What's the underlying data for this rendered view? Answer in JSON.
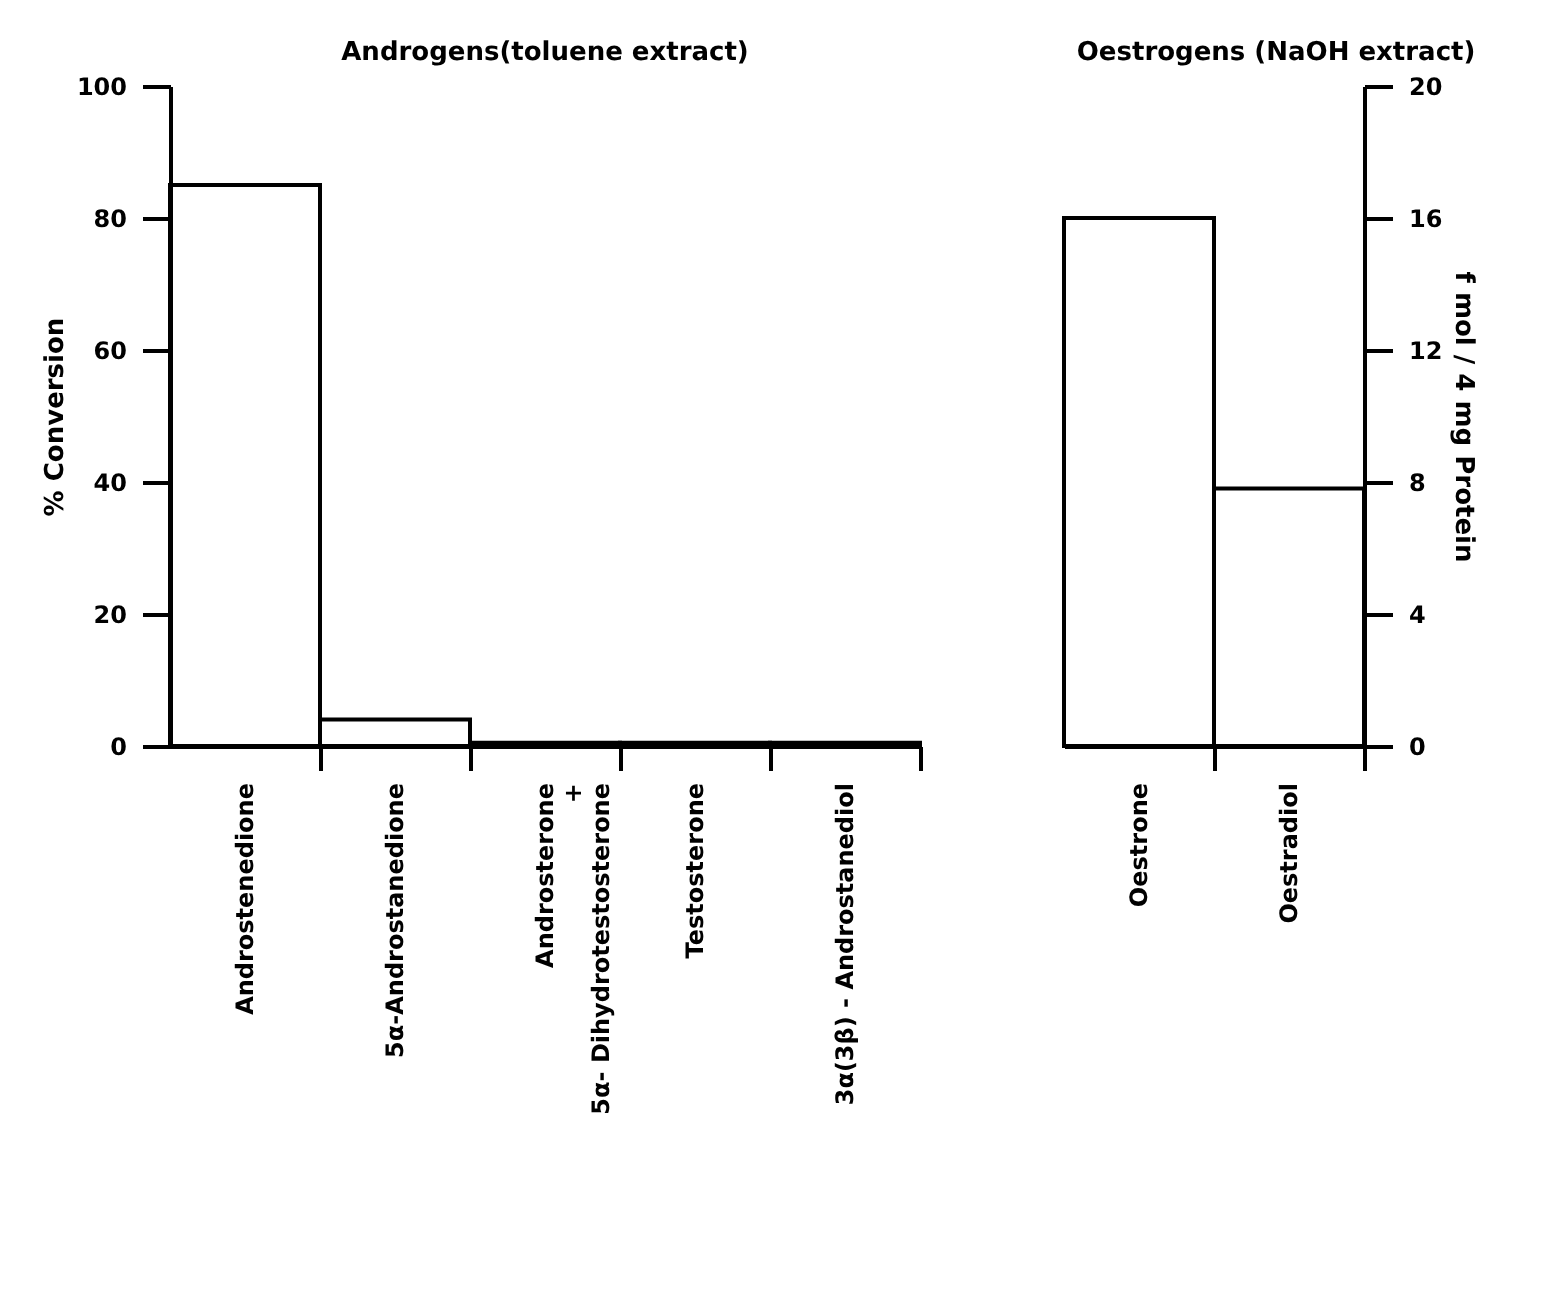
{
  "chart_data": [
    {
      "type": "bar",
      "title": "Androgens(toluene extract)",
      "ylabel": "% Conversion",
      "categories": [
        "Androstenedione",
        "5α-Androstanedione",
        "Androsterone\n+\n5α- Dihydrotestosterone",
        "Testosterone",
        "3α(3β) - Androstanediol"
      ],
      "values": [
        85,
        4,
        0.5,
        0.5,
        0.5
      ],
      "color": "#000000",
      "ylim": [
        0,
        100
      ],
      "yticks": [
        0,
        20,
        40,
        60,
        80,
        100
      ],
      "grid": false
    },
    {
      "type": "bar",
      "title": "Oestrogens (NaOH extract)",
      "ylabel": "f mol / 4 mg  Protein",
      "categories": [
        "Oestrone",
        "Oestradiol"
      ],
      "values": [
        16,
        7.8
      ],
      "color": "#000000",
      "ylim": [
        0,
        20
      ],
      "yticks": [
        0,
        4,
        8,
        12,
        16,
        20
      ],
      "grid": false
    }
  ]
}
